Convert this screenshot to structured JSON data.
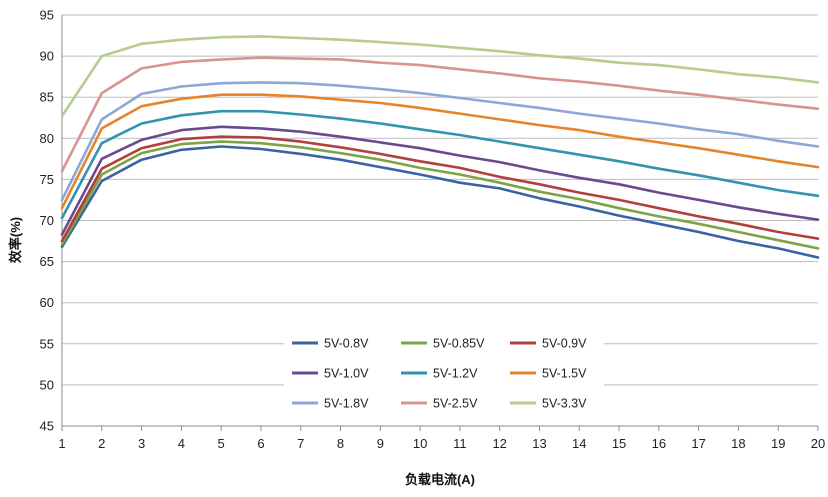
{
  "chart_data": {
    "type": "line",
    "title": "",
    "xlabel": "负载电流(A)",
    "ylabel": "效率(%)",
    "x": [
      1,
      2,
      3,
      4,
      5,
      6,
      7,
      8,
      9,
      10,
      11,
      12,
      13,
      14,
      15,
      16,
      17,
      18,
      19,
      20
    ],
    "xlim": [
      1,
      20
    ],
    "ylim": [
      45,
      95
    ],
    "yticks": [
      45,
      50,
      55,
      60,
      65,
      70,
      75,
      80,
      85,
      90,
      95
    ],
    "grid": "horizontal",
    "legend_position": "bottom-center",
    "series": [
      {
        "name": "5V-0.8V",
        "color": "#3b62a3",
        "values": [
          66.8,
          74.8,
          77.4,
          78.6,
          79.0,
          78.7,
          78.1,
          77.4,
          76.5,
          75.6,
          74.6,
          73.9,
          72.7,
          71.7,
          70.6,
          69.6,
          68.6,
          67.5,
          66.6,
          65.5
        ]
      },
      {
        "name": "5V-0.85V",
        "color": "#7da344",
        "values": [
          67.1,
          75.6,
          78.2,
          79.3,
          79.6,
          79.4,
          78.9,
          78.2,
          77.4,
          76.4,
          75.6,
          74.6,
          73.5,
          72.6,
          71.5,
          70.5,
          69.6,
          68.6,
          67.6,
          66.6
        ]
      },
      {
        "name": "5V-0.9V",
        "color": "#b23f3c",
        "values": [
          67.5,
          76.3,
          78.8,
          79.9,
          80.2,
          80.1,
          79.6,
          78.9,
          78.1,
          77.2,
          76.4,
          75.3,
          74.4,
          73.4,
          72.5,
          71.5,
          70.5,
          69.6,
          68.6,
          67.8
        ]
      },
      {
        "name": "5V-1.0V",
        "color": "#6a4a8d",
        "values": [
          68.3,
          77.5,
          79.8,
          81.0,
          81.4,
          81.2,
          80.8,
          80.2,
          79.5,
          78.8,
          77.9,
          77.1,
          76.1,
          75.2,
          74.4,
          73.4,
          72.5,
          71.6,
          70.8,
          70.1
        ]
      },
      {
        "name": "5V-1.2V",
        "color": "#3293ae",
        "values": [
          70.3,
          79.4,
          81.8,
          82.8,
          83.3,
          83.3,
          82.9,
          82.4,
          81.8,
          81.1,
          80.4,
          79.6,
          78.8,
          78.0,
          77.2,
          76.3,
          75.5,
          74.6,
          73.7,
          73.0
        ]
      },
      {
        "name": "5V-1.5V",
        "color": "#e6842c",
        "values": [
          71.5,
          81.2,
          83.9,
          84.8,
          85.3,
          85.3,
          85.1,
          84.7,
          84.3,
          83.7,
          83.0,
          82.3,
          81.6,
          81.0,
          80.2,
          79.5,
          78.8,
          78.0,
          77.2,
          76.5
        ]
      },
      {
        "name": "5V-1.8V",
        "color": "#8ba8d6",
        "values": [
          72.5,
          82.3,
          85.4,
          86.3,
          86.7,
          86.8,
          86.7,
          86.4,
          86.0,
          85.5,
          84.9,
          84.3,
          83.7,
          83.0,
          82.4,
          81.8,
          81.1,
          80.5,
          79.7,
          79.0
        ]
      },
      {
        "name": "5V-2.5V",
        "color": "#d79491",
        "values": [
          76.0,
          85.5,
          88.5,
          89.3,
          89.6,
          89.8,
          89.7,
          89.6,
          89.2,
          88.9,
          88.4,
          87.9,
          87.3,
          86.9,
          86.4,
          85.8,
          85.3,
          84.7,
          84.1,
          83.6
        ]
      },
      {
        "name": "5V-3.3V",
        "color": "#b5cd8d",
        "values": [
          82.7,
          90.0,
          91.5,
          92.0,
          92.3,
          92.4,
          92.2,
          92.0,
          91.7,
          91.4,
          91.0,
          90.6,
          90.1,
          89.7,
          89.2,
          88.9,
          88.4,
          87.8,
          87.4,
          86.8
        ]
      }
    ]
  }
}
